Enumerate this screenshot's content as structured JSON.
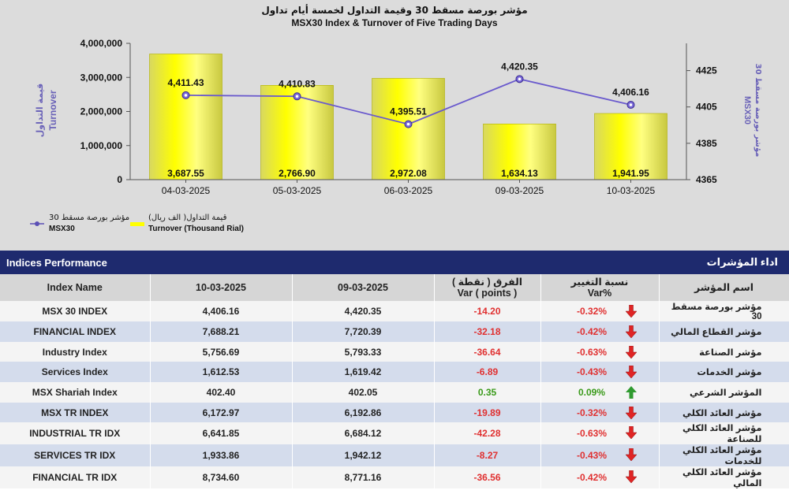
{
  "chart": {
    "title_ar": "مؤشر بورصة مسقط 30 وقيمة التداول لخمسة أيام تداول",
    "title_en": "MSX30 Index & Turnover of Five Trading Days",
    "left_axis_label_ar": "قيمة التداول",
    "left_axis_label_en": "Turnover",
    "right_axis_label_ar": "مؤشر بورصة مسقط 30",
    "right_axis_label_en": "MSX30",
    "legend": {
      "line_ar": "مؤشر بورصة مسقط 30",
      "line_en": "MSX30",
      "bar_ar": "قيمة التداول( الف ريال)",
      "bar_en": "Turnover (Thousand Rial)"
    },
    "colors": {
      "bar": "#ffff00",
      "line": "#6a5acd",
      "background": "#dcdcdc"
    }
  },
  "chart_data": {
    "type": "bar+line",
    "title": "MSX30 Index & Turnover of Five Trading Days",
    "categories": [
      "04-03-2025",
      "05-03-2025",
      "06-03-2025",
      "09-03-2025",
      "10-03-2025"
    ],
    "series": [
      {
        "name": "Turnover (Thousand Rial)",
        "type": "bar",
        "axis": "left",
        "values": [
          3687.55,
          2766.9,
          2972.08,
          1634.13,
          1941.95
        ],
        "labels": [
          "3,687.55",
          "2,766.90",
          "2,972.08",
          "1,634.13",
          "1,941.95"
        ]
      },
      {
        "name": "MSX30",
        "type": "line",
        "axis": "right",
        "values": [
          4411.43,
          4410.83,
          4395.51,
          4420.35,
          4406.16
        ],
        "labels": [
          "4,411.43",
          "4,410.83",
          "4,395.51",
          "4,420.35",
          "4,406.16"
        ]
      }
    ],
    "left_axis": {
      "ylim": [
        0,
        4000000
      ],
      "ticks": [
        "0",
        "1,000,000",
        "2,000,000",
        "3,000,000",
        "4,000,000"
      ],
      "tick_values": [
        0,
        1000000,
        2000000,
        3000000,
        4000000
      ]
    },
    "right_axis": {
      "ylim": [
        4365,
        4440
      ],
      "ticks": [
        "4365",
        "4385",
        "4405",
        "4425"
      ],
      "tick_values": [
        4365,
        4385,
        4405,
        4425
      ]
    }
  },
  "table": {
    "title_en": "Indices Performance",
    "title_ar": "اداء المؤشرات",
    "headers": {
      "name": "Index Name",
      "date1": "10-03-2025",
      "date2": "09-03-2025",
      "diff_ar": "الفرق ( نقطة )",
      "diff_en": "Var ( points )",
      "pct_ar": "نسبة التغيير",
      "pct_en": "Var%",
      "name_ar": "اسم المؤشر"
    },
    "rows": [
      {
        "name": "MSX 30 INDEX",
        "v1": "4,406.16",
        "v2": "4,420.35",
        "diff": "-14.20",
        "pct": "-0.32%",
        "dir": "down",
        "name_ar": "مؤشر بورصة مسقط 30"
      },
      {
        "name": "FINANCIAL INDEX",
        "v1": "7,688.21",
        "v2": "7,720.39",
        "diff": "-32.18",
        "pct": "-0.42%",
        "dir": "down",
        "name_ar": "مؤشر القطاع المالي"
      },
      {
        "name": "Industry Index",
        "v1": "5,756.69",
        "v2": "5,793.33",
        "diff": "-36.64",
        "pct": "-0.63%",
        "dir": "down",
        "name_ar": "مؤشر الصناعة"
      },
      {
        "name": "Services Index",
        "v1": "1,612.53",
        "v2": "1,619.42",
        "diff": "-6.89",
        "pct": "-0.43%",
        "dir": "down",
        "name_ar": "مؤشر الخدمات"
      },
      {
        "name": "MSX Shariah Index",
        "v1": "402.40",
        "v2": "402.05",
        "diff": "0.35",
        "pct": "0.09%",
        "dir": "up",
        "name_ar": "المؤشر الشرعي"
      },
      {
        "name": "MSX TR INDEX",
        "v1": "6,172.97",
        "v2": "6,192.86",
        "diff": "-19.89",
        "pct": "-0.32%",
        "dir": "down",
        "name_ar": "مؤشر العائد الكلي"
      },
      {
        "name": "INDUSTRIAL TR IDX",
        "v1": "6,641.85",
        "v2": "6,684.12",
        "diff": "-42.28",
        "pct": "-0.63%",
        "dir": "down",
        "name_ar": "مؤشر العائد الكلي للصناعة"
      },
      {
        "name": "SERVICES TR IDX",
        "v1": "1,933.86",
        "v2": "1,942.12",
        "diff": "-8.27",
        "pct": "-0.43%",
        "dir": "down",
        "name_ar": "مؤشر العائد الكلي للخدمات"
      },
      {
        "name": "FINANCIAL TR IDX",
        "v1": "8,734.60",
        "v2": "8,771.16",
        "diff": "-36.56",
        "pct": "-0.42%",
        "dir": "down",
        "name_ar": "مؤشر العائد الكلي المالي"
      }
    ]
  }
}
